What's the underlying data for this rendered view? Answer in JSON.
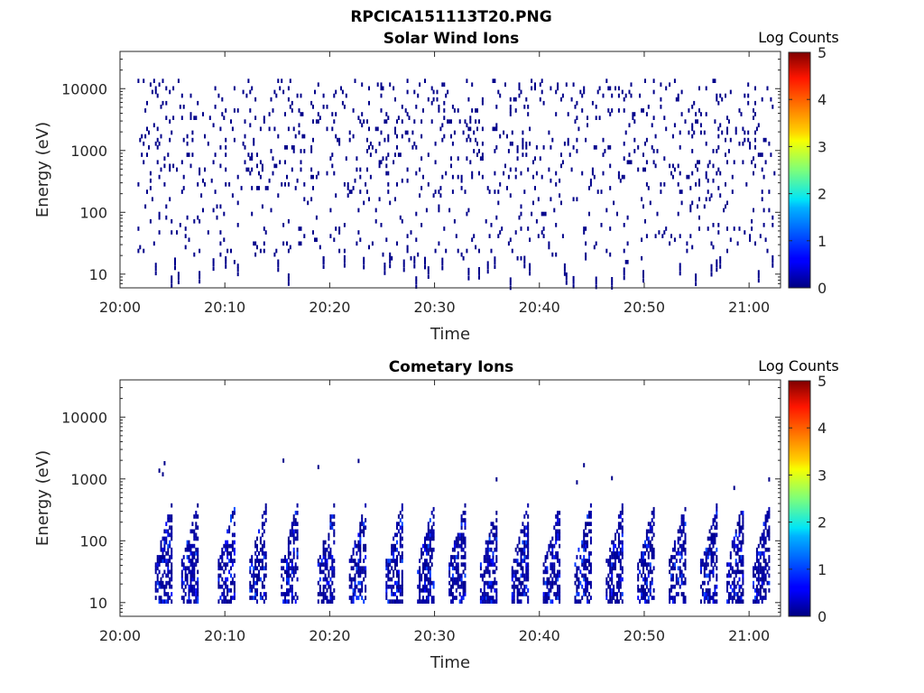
{
  "figure_title": "RPCICA151113T20.PNG",
  "chart_data": [
    {
      "type": "heatmap",
      "title": "Solar Wind Ions",
      "xlabel": "Time",
      "ylabel": "Energy (eV)",
      "x_ticks": [
        "20:00",
        "20:10",
        "20:20",
        "20:30",
        "20:40",
        "20:50",
        "21:00"
      ],
      "xlim": [
        "20:00",
        "21:03"
      ],
      "y_scale": "log",
      "y_ticks": [
        "10",
        "100",
        "1000",
        "10000"
      ],
      "ylim": [
        6,
        40000
      ],
      "data_start": "20:01:30",
      "data_end": "21:02:30",
      "colorbar": {
        "label": "Log Counts",
        "ticks": [
          "0",
          "1",
          "2",
          "3",
          "4",
          "5"
        ],
        "range": [
          0,
          5
        ],
        "colormap": "jet"
      },
      "description_values": {
        "sparse_scatter_energy_range_eV": [
          200,
          15000
        ],
        "typical_log_counts": 0,
        "low_energy_streaks_eV": [
          6,
          60
        ]
      }
    },
    {
      "type": "heatmap",
      "title": "Cometary Ions",
      "xlabel": "Time",
      "ylabel": "Energy (eV)",
      "x_ticks": [
        "20:00",
        "20:10",
        "20:20",
        "20:30",
        "20:40",
        "20:50",
        "21:00"
      ],
      "xlim": [
        "20:00",
        "21:03"
      ],
      "y_scale": "log",
      "y_ticks": [
        "10",
        "100",
        "1000",
        "10000"
      ],
      "ylim": [
        6,
        40000
      ],
      "data_start": "20:01:30",
      "data_end": "21:02:30",
      "colorbar": {
        "label": "Log Counts",
        "ticks": [
          "0",
          "1",
          "2",
          "3",
          "4",
          "5"
        ],
        "range": [
          0,
          5
        ],
        "colormap": "jet"
      },
      "burst_times": [
        "20:04:30",
        "20:07:00",
        "20:10:30",
        "20:13:30",
        "20:16:30",
        "20:20:00",
        "20:23:00",
        "20:26:30",
        "20:29:30",
        "20:32:30",
        "20:35:30",
        "20:38:30",
        "20:41:30",
        "20:44:30",
        "20:47:30",
        "20:50:30",
        "20:53:30",
        "20:56:30",
        "20:59:00",
        "21:01:30"
      ],
      "burst_energy_range_eV": [
        10,
        500
      ],
      "peak_log_counts": 1
    }
  ]
}
